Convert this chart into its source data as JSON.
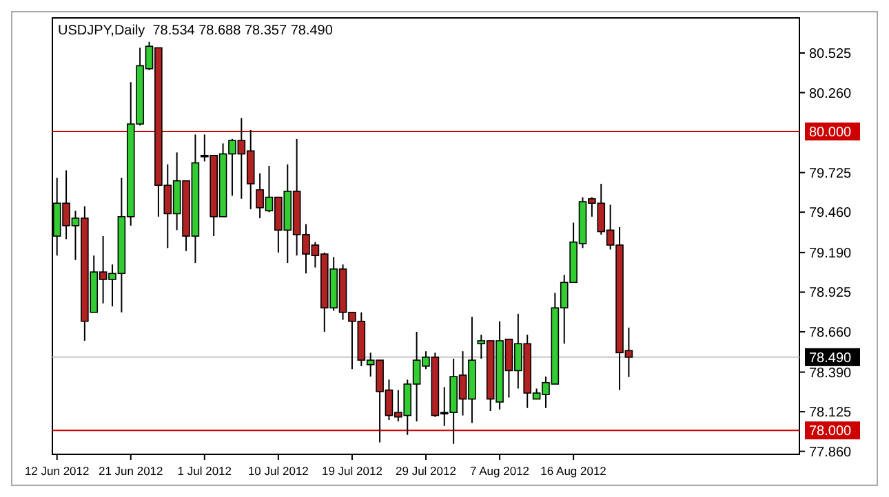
{
  "chart_data": {
    "type": "candlestick",
    "title": "USDJPY,Daily  78.534 78.688 78.357 78.490",
    "categories": [
      "12 Jun 2012",
      null,
      null,
      null,
      null,
      null,
      null,
      null,
      "21 Jun 2012",
      null,
      null,
      null,
      null,
      null,
      null,
      null,
      "1 Jul 2012",
      null,
      null,
      null,
      null,
      null,
      null,
      null,
      "10 Jul 2012",
      null,
      null,
      null,
      null,
      null,
      null,
      null,
      "19 Jul 2012",
      null,
      null,
      null,
      null,
      null,
      null,
      null,
      "29 Jul 2012",
      null,
      null,
      null,
      null,
      null,
      null,
      null,
      "7 Aug 2012",
      null,
      null,
      null,
      null,
      null,
      null,
      null,
      "16 Aug 2012",
      null,
      null,
      null,
      null,
      null,
      null,
      null,
      null,
      null,
      null,
      null,
      null,
      null,
      null,
      null,
      null,
      null,
      null,
      null,
      null,
      null,
      null,
      null,
      null
    ],
    "ohlc": [
      [
        79.3,
        79.69,
        79.17,
        79.52
      ],
      [
        79.52,
        79.74,
        79.28,
        79.37
      ],
      [
        79.37,
        79.47,
        79.14,
        79.42
      ],
      [
        79.42,
        79.5,
        78.6,
        78.73
      ],
      [
        78.79,
        79.17,
        78.79,
        79.06
      ],
      [
        79.06,
        79.3,
        78.85,
        79.01
      ],
      [
        79.01,
        79.11,
        78.83,
        79.05
      ],
      [
        79.05,
        79.69,
        78.79,
        79.43
      ],
      [
        79.43,
        80.33,
        79.37,
        80.05
      ],
      [
        80.05,
        80.56,
        80.04,
        80.44
      ],
      [
        80.42,
        80.6,
        80.41,
        80.57
      ],
      [
        80.56,
        80.56,
        79.43,
        79.64
      ],
      [
        79.64,
        79.78,
        79.22,
        79.45
      ],
      [
        79.45,
        79.86,
        79.34,
        79.67
      ],
      [
        79.67,
        79.67,
        79.2,
        79.3
      ],
      [
        79.3,
        79.98,
        79.12,
        79.79
      ],
      [
        79.84,
        79.98,
        79.8,
        79.84
      ],
      [
        79.84,
        79.84,
        79.3,
        79.43
      ],
      [
        79.43,
        79.92,
        79.43,
        79.85
      ],
      [
        79.85,
        79.95,
        79.57,
        79.94
      ],
      [
        79.94,
        80.09,
        79.55,
        79.85
      ],
      [
        79.87,
        80.01,
        79.48,
        79.65
      ],
      [
        79.61,
        79.72,
        79.42,
        79.49
      ],
      [
        79.47,
        79.77,
        79.46,
        79.56
      ],
      [
        79.56,
        79.56,
        79.19,
        79.34
      ],
      [
        79.34,
        79.78,
        79.12,
        79.6
      ],
      [
        79.6,
        79.95,
        79.17,
        79.31
      ],
      [
        79.31,
        79.38,
        79.05,
        79.18
      ],
      [
        79.24,
        79.26,
        79.09,
        79.17
      ],
      [
        79.18,
        79.19,
        78.66,
        78.82
      ],
      [
        78.82,
        79.16,
        78.8,
        79.08
      ],
      [
        79.08,
        79.11,
        78.74,
        78.79
      ],
      [
        78.79,
        78.79,
        78.41,
        78.73
      ],
      [
        78.73,
        78.79,
        78.43,
        78.47
      ],
      [
        78.44,
        78.52,
        78.36,
        78.47
      ],
      [
        78.47,
        78.47,
        77.92,
        78.26
      ],
      [
        78.27,
        78.34,
        78.07,
        78.1
      ],
      [
        78.12,
        78.27,
        78.06,
        78.09
      ],
      [
        78.1,
        78.34,
        77.97,
        78.31
      ],
      [
        78.31,
        78.66,
        78.06,
        78.47
      ],
      [
        78.43,
        78.53,
        78.41,
        78.49
      ],
      [
        78.49,
        78.52,
        78.09,
        78.1
      ],
      [
        78.12,
        78.29,
        78.03,
        78.12
      ],
      [
        78.12,
        78.48,
        77.91,
        78.36
      ],
      [
        78.37,
        78.53,
        78.1,
        78.21
      ],
      [
        78.21,
        78.76,
        78.05,
        78.47
      ],
      [
        78.58,
        78.64,
        78.48,
        78.6
      ],
      [
        78.6,
        78.6,
        78.13,
        78.21
      ],
      [
        78.19,
        78.73,
        78.14,
        78.6
      ],
      [
        78.61,
        78.61,
        78.22,
        78.4
      ],
      [
        78.4,
        78.78,
        78.28,
        78.58
      ],
      [
        78.58,
        78.64,
        78.15,
        78.25
      ],
      [
        78.21,
        78.28,
        78.21,
        78.25
      ],
      [
        78.24,
        78.36,
        78.15,
        78.32
      ],
      [
        78.31,
        78.92,
        78.31,
        78.82
      ],
      [
        78.82,
        79.04,
        78.58,
        78.99
      ],
      [
        78.99,
        79.39,
        78.99,
        79.26
      ],
      [
        79.25,
        79.56,
        79.22,
        79.53
      ],
      [
        79.55,
        79.56,
        79.43,
        79.52
      ],
      [
        79.52,
        79.65,
        79.31,
        79.33
      ],
      [
        79.34,
        79.51,
        79.21,
        79.24
      ],
      [
        79.24,
        79.36,
        78.27,
        78.52
      ],
      [
        78.534,
        78.688,
        78.357,
        78.49
      ],
      null,
      null,
      null,
      null,
      null,
      null,
      null,
      null,
      null,
      null,
      null,
      null,
      null,
      null,
      null,
      null,
      null,
      null
    ],
    "colors": [
      "#32cd32",
      "#b22222",
      "#32cd32",
      "#b22222",
      "#32cd32",
      "#b22222",
      "#32cd32",
      "#32cd32",
      "#32cd32",
      "#32cd32",
      "#32cd32",
      "#b22222",
      "#b22222",
      "#32cd32",
      "#b22222",
      "#32cd32",
      "#000000",
      "#b22222",
      "#32cd32",
      "#32cd32",
      "#b22222",
      "#b22222",
      "#b22222",
      "#32cd32",
      "#b22222",
      "#32cd32",
      "#b22222",
      "#b22222",
      "#b22222",
      "#b22222",
      "#32cd32",
      "#b22222",
      "#b22222",
      "#b22222",
      "#32cd32",
      "#b22222",
      "#b22222",
      "#b22222",
      "#32cd32",
      "#32cd32",
      "#32cd32",
      "#b22222",
      "#000000",
      "#32cd32",
      "#b22222",
      "#32cd32",
      "#32cd32",
      "#b22222",
      "#32cd32",
      "#b22222",
      "#32cd32",
      "#b22222",
      "#32cd32",
      "#32cd32",
      "#32cd32",
      "#32cd32",
      "#32cd32",
      "#32cd32",
      "#b22222",
      "#b22222",
      "#b22222",
      "#b22222",
      "#b22222",
      null,
      null,
      null,
      null,
      null,
      null,
      null,
      null,
      null,
      null,
      null,
      null,
      null,
      null,
      null,
      null,
      null,
      null
    ],
    "ylim": [
      77.84,
      80.76
    ],
    "yticks": [
      {
        "value": 80.525,
        "label": "80.525"
      },
      {
        "value": 80.26,
        "label": "80.260"
      },
      {
        "value": 79.725,
        "label": "79.725"
      },
      {
        "value": 79.46,
        "label": "79.460"
      },
      {
        "value": 79.19,
        "label": "79.190"
      },
      {
        "value": 78.925,
        "label": "78.925"
      },
      {
        "value": 78.66,
        "label": "78.660"
      },
      {
        "value": 78.39,
        "label": "78.390"
      },
      {
        "value": 78.125,
        "label": "78.125"
      },
      {
        "value": 77.86,
        "label": "77.860"
      }
    ],
    "ref_lines": [
      {
        "axis": "y",
        "value": 80,
        "label": "80.000",
        "color": "#cc0000"
      },
      {
        "axis": "y",
        "value": 78,
        "label": "78.000",
        "color": "#cc0000"
      },
      {
        "axis": "y",
        "value": 78.49,
        "label": "78.490",
        "color": "#c8c8c8"
      }
    ]
  }
}
